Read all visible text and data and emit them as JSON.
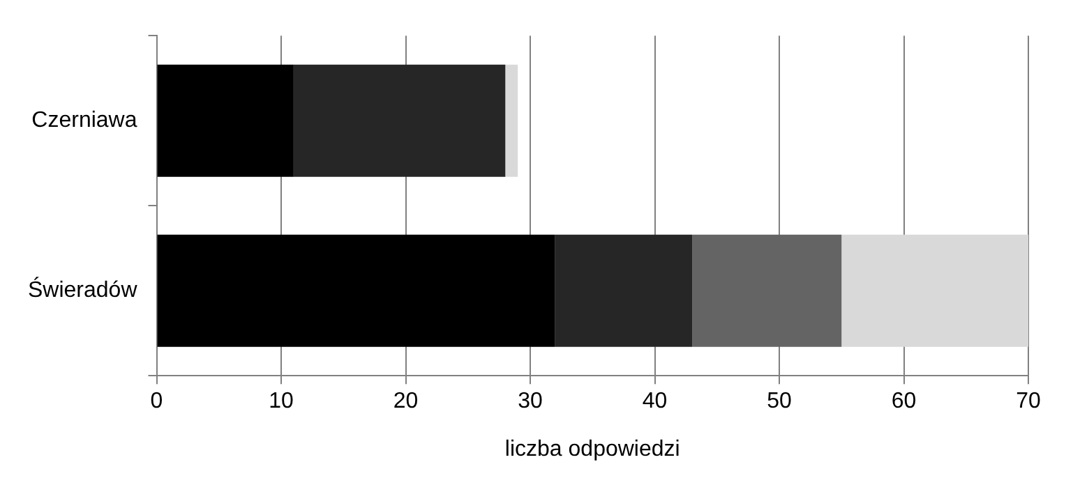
{
  "chart_data": {
    "type": "bar",
    "orientation": "horizontal",
    "stacked": true,
    "categories": [
      "Czerniawa",
      "Świeradów"
    ],
    "series": [
      {
        "color": "#000000",
        "values": [
          11,
          32
        ]
      },
      {
        "color": "#262626",
        "values": [
          17,
          11
        ]
      },
      {
        "color": "#646464",
        "values": [
          0,
          12
        ]
      },
      {
        "color": "#d9d9d9",
        "values": [
          1,
          15
        ]
      }
    ],
    "xlabel": "liczba odpowiedzi",
    "xlim": [
      0,
      70
    ],
    "xticks": [
      0,
      10,
      20,
      30,
      40,
      50,
      60,
      70
    ],
    "grid": "x",
    "legend": false
  }
}
